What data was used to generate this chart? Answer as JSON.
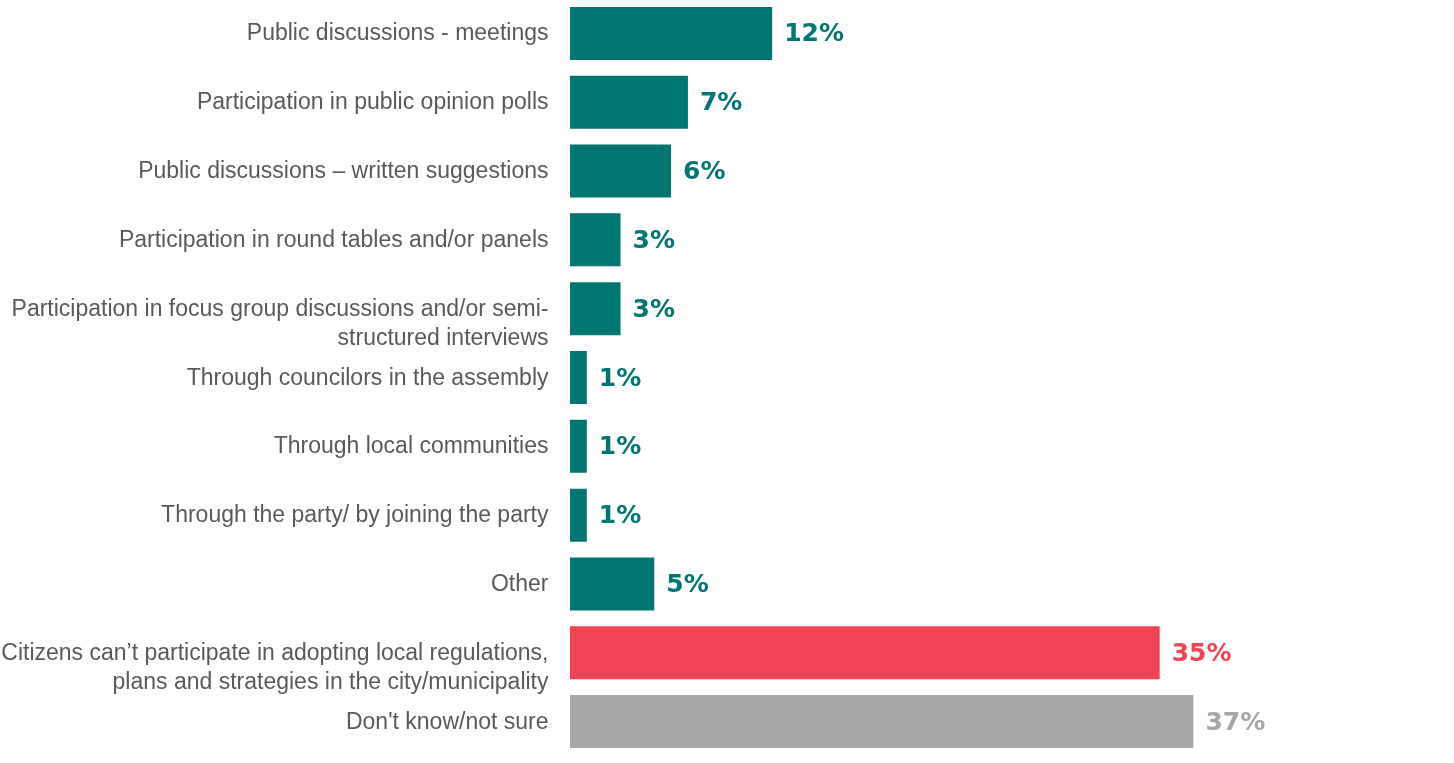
{
  "chart_data": {
    "type": "bar",
    "orientation": "horizontal",
    "value_labels": [
      "12%",
      "7%",
      "6%",
      "3%",
      "3%",
      "1%",
      "1%",
      "1%",
      "5%",
      "35%",
      "37%"
    ],
    "categories": [
      "Public discussions - meetings",
      "Participation in public opinion polls",
      "Public discussions – written suggestions",
      "Participation in round tables and/or panels",
      "Participation in focus group discussions and/or semi-structured interviews",
      "Through councilors in the assembly",
      "Through local communities",
      "Through the party/ by joining the party",
      "Other",
      "Citizens can’t participate in adopting local regulations, plans and strategies in the city/municipality",
      "Don't know/not sure"
    ],
    "values": [
      12,
      7,
      6,
      3,
      3,
      1,
      1,
      1,
      5,
      35,
      37
    ],
    "colors": [
      "#007672",
      "#007672",
      "#007672",
      "#007672",
      "#007672",
      "#007672",
      "#007672",
      "#007672",
      "#007672",
      "#f04452",
      "#a6a6a6"
    ]
  }
}
